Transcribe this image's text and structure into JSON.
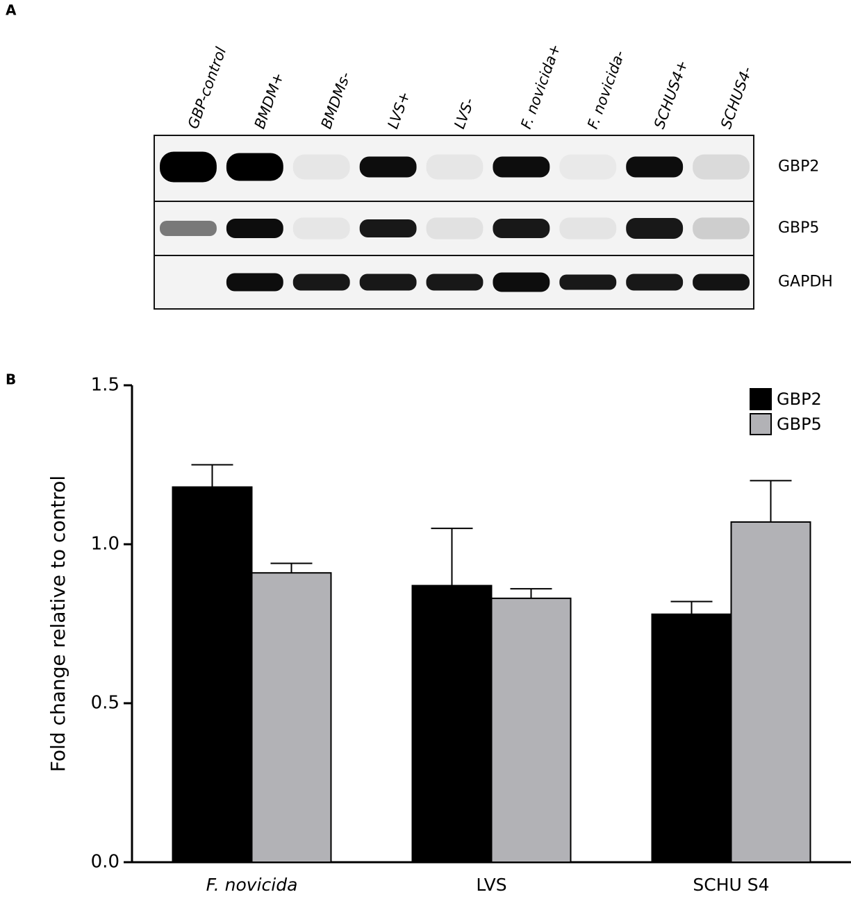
{
  "panels": [
    "A",
    "B"
  ],
  "blot": {
    "lanes": [
      "GBP-control",
      "BMDM+",
      "BMDMs-",
      "LVS+",
      "LVS-",
      "F. novicida+",
      "F. novicida-",
      "SCHUS4+",
      "SCHUS4-"
    ],
    "rows": [
      "GBP2",
      "GBP5",
      "GAPDH"
    ]
  },
  "chart_data": {
    "type": "bar",
    "y_label": "Fold change relative to control",
    "categories": [
      "F. novicida",
      "LVS",
      "SCHU S4"
    ],
    "series": [
      {
        "name": "GBP2",
        "color": "#000000",
        "values": [
          1.18,
          0.87,
          0.78
        ],
        "errors": [
          0.07,
          0.18,
          0.04
        ]
      },
      {
        "name": "GBP5",
        "color": "#b2b2b6",
        "values": [
          0.91,
          0.83,
          1.07
        ],
        "errors": [
          0.03,
          0.03,
          0.13
        ]
      }
    ],
    "ylim": [
      0,
      1.5
    ],
    "yticks": [
      {
        "value": 0,
        "label": "0.0"
      },
      0.5,
      {
        "value": 1,
        "label": "1.0"
      },
      1.5
    ],
    "legend": "top-right"
  }
}
